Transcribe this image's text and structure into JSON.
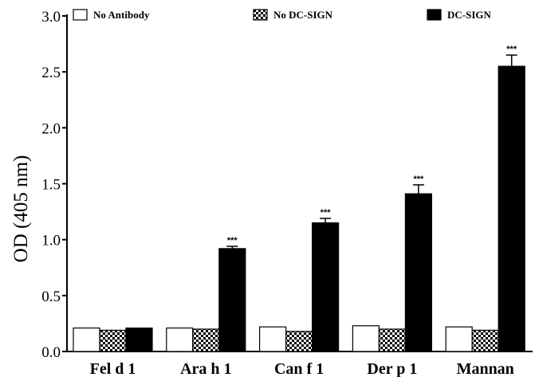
{
  "chart_data": {
    "type": "bar",
    "ylabel": "OD (405 nm)",
    "ylim": [
      0,
      3.0
    ],
    "yticks": [
      "0.0",
      "0.5",
      "1.0",
      "1.5",
      "2.0",
      "2.5",
      "3.0"
    ],
    "categories": [
      "Fel d 1",
      "Ara h 1",
      "Can f 1",
      "Der p 1",
      "Mannan"
    ],
    "legend_position": "top",
    "series": [
      {
        "name": "No Antibody",
        "fill": "white",
        "values": [
          0.21,
          0.21,
          0.22,
          0.23,
          0.22
        ],
        "errors": [
          0.005,
          0.005,
          0.005,
          0.005,
          0.005
        ]
      },
      {
        "name": "No DC-SIGN",
        "fill": "checker",
        "values": [
          0.19,
          0.2,
          0.18,
          0.2,
          0.19
        ],
        "errors": [
          0.005,
          0.005,
          0.005,
          0.005,
          0.005
        ]
      },
      {
        "name": "DC-SIGN",
        "fill": "black",
        "values": [
          0.21,
          0.92,
          1.15,
          1.41,
          2.55
        ],
        "errors": [
          0.0,
          0.02,
          0.04,
          0.08,
          0.1
        ]
      }
    ],
    "annotations": [
      "",
      "***",
      "***",
      "***",
      "***"
    ]
  },
  "colors": {
    "axis": "#000000",
    "bar_dark": "#000000",
    "bar_light": "#ffffff"
  }
}
